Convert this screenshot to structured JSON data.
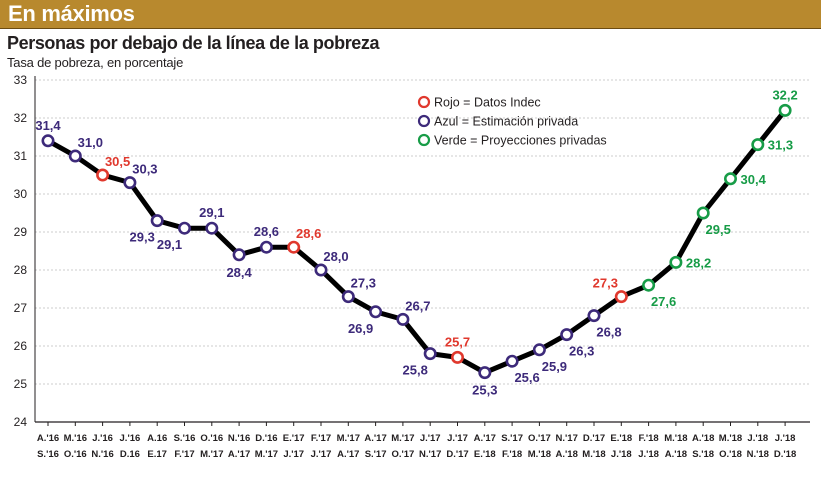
{
  "header": {
    "title": "En máximos"
  },
  "chart_data": {
    "type": "line",
    "title": "Personas por debajo de la línea de la pobreza",
    "subtitle": "Tasa de  pobreza, en porcentaje",
    "ylim": [
      24,
      33
    ],
    "yticks": [
      24,
      25,
      26,
      27,
      28,
      29,
      30,
      31,
      32,
      33
    ],
    "grid": "horizontal",
    "legend_position": "top-right",
    "colors": {
      "red": "#e0382d",
      "blue": "#3d2a7a",
      "green": "#179c47",
      "line": "#000000",
      "header": "#b8892e"
    },
    "legend": [
      {
        "text": "Rojo = Datos Indec",
        "color": "red"
      },
      {
        "text": "Azul = Estimación privada",
        "color": "blue"
      },
      {
        "text": "Verde = Proyecciones privadas",
        "color": "green"
      }
    ],
    "categories": [
      [
        "A.'16",
        "S.'16"
      ],
      [
        "M.'16",
        "O.'16"
      ],
      [
        "J.'16",
        "N.'16"
      ],
      [
        "J.'16",
        "D.16"
      ],
      [
        "A.16",
        "E.17"
      ],
      [
        "S.'16",
        "F.'17"
      ],
      [
        "O.'16",
        "M.'17"
      ],
      [
        "N.'16",
        "A.'17"
      ],
      [
        "D.'16",
        "M.'17"
      ],
      [
        "E.'17",
        "J.'17"
      ],
      [
        "F.'17",
        "J.'17"
      ],
      [
        "M.'17",
        "A.'17"
      ],
      [
        "A.'17",
        "S.'17"
      ],
      [
        "M.'17",
        "O.'17"
      ],
      [
        "J.'17",
        "N.'17"
      ],
      [
        "J.'17",
        "D.'17"
      ],
      [
        "A.'17",
        "E.'18"
      ],
      [
        "S.'17",
        "F.'18"
      ],
      [
        "O.'17",
        "M.'18"
      ],
      [
        "N.'17",
        "A.'18"
      ],
      [
        "D.'17",
        "M.'18"
      ],
      [
        "E.'18",
        "J.'18"
      ],
      [
        "F.'18",
        "J.'18"
      ],
      [
        "M.'18",
        "A.'18"
      ],
      [
        "A.'18",
        "S.'18"
      ],
      [
        "M.'18",
        "O.'18"
      ],
      [
        "J.'18",
        "N.'18"
      ],
      [
        "J.'18",
        "D.'18"
      ]
    ],
    "values": [
      31.4,
      31.0,
      30.5,
      30.3,
      29.3,
      29.1,
      29.1,
      28.4,
      28.6,
      28.6,
      28.0,
      27.3,
      26.9,
      26.7,
      25.8,
      25.7,
      25.3,
      25.6,
      25.9,
      26.3,
      26.8,
      27.3,
      27.6,
      28.2,
      29.5,
      30.4,
      31.3,
      32.2
    ],
    "point_colors": [
      "blue",
      "blue",
      "red",
      "blue",
      "blue",
      "blue",
      "blue",
      "blue",
      "blue",
      "red",
      "blue",
      "blue",
      "blue",
      "blue",
      "blue",
      "red",
      "blue",
      "blue",
      "blue",
      "blue",
      "blue",
      "red",
      "green",
      "green",
      "green",
      "green",
      "green",
      "green"
    ],
    "labels": [
      {
        "i": 0,
        "text": "31,4",
        "color": "blue",
        "pos": "above"
      },
      {
        "i": 1,
        "text": "31,0",
        "color": "blue",
        "pos": "above-right"
      },
      {
        "i": 2,
        "text": "30,5",
        "color": "red",
        "pos": "above-right"
      },
      {
        "i": 3,
        "text": "30,3",
        "color": "blue",
        "pos": "above-right"
      },
      {
        "i": 4,
        "text": "29,3",
        "color": "blue",
        "pos": "below-left"
      },
      {
        "i": 5,
        "text": "29,1",
        "color": "blue",
        "pos": "below-left"
      },
      {
        "i": 6,
        "text": "29,1",
        "color": "blue",
        "pos": "above"
      },
      {
        "i": 7,
        "text": "28,4",
        "color": "blue",
        "pos": "below"
      },
      {
        "i": 8,
        "text": "28,6",
        "color": "blue",
        "pos": "above"
      },
      {
        "i": 9,
        "text": "28,6",
        "color": "red",
        "pos": "above-right"
      },
      {
        "i": 10,
        "text": "28,0",
        "color": "blue",
        "pos": "above-right"
      },
      {
        "i": 11,
        "text": "27,3",
        "color": "blue",
        "pos": "above-right"
      },
      {
        "i": 12,
        "text": "26,9",
        "color": "blue",
        "pos": "below-left"
      },
      {
        "i": 13,
        "text": "26,7",
        "color": "blue",
        "pos": "above-right"
      },
      {
        "i": 14,
        "text": "25,8",
        "color": "blue",
        "pos": "below-left"
      },
      {
        "i": 15,
        "text": "25,7",
        "color": "red",
        "pos": "above"
      },
      {
        "i": 16,
        "text": "25,3",
        "color": "blue",
        "pos": "below"
      },
      {
        "i": 17,
        "text": "25,6",
        "color": "blue",
        "pos": "below-right"
      },
      {
        "i": 18,
        "text": "25,9",
        "color": "blue",
        "pos": "below-right"
      },
      {
        "i": 19,
        "text": "26,3",
        "color": "blue",
        "pos": "below-right"
      },
      {
        "i": 20,
        "text": "26,8",
        "color": "blue",
        "pos": "below-right"
      },
      {
        "i": 21,
        "text": "27,3",
        "color": "red",
        "pos": "above-left"
      },
      {
        "i": 22,
        "text": "27,6",
        "color": "green",
        "pos": "below-right"
      },
      {
        "i": 23,
        "text": "28,2",
        "color": "green",
        "pos": "right"
      },
      {
        "i": 24,
        "text": "29,5",
        "color": "green",
        "pos": "below-right"
      },
      {
        "i": 25,
        "text": "30,4",
        "color": "green",
        "pos": "right"
      },
      {
        "i": 26,
        "text": "31,3",
        "color": "green",
        "pos": "right"
      },
      {
        "i": 27,
        "text": "32,2",
        "color": "green",
        "pos": "above"
      }
    ]
  }
}
